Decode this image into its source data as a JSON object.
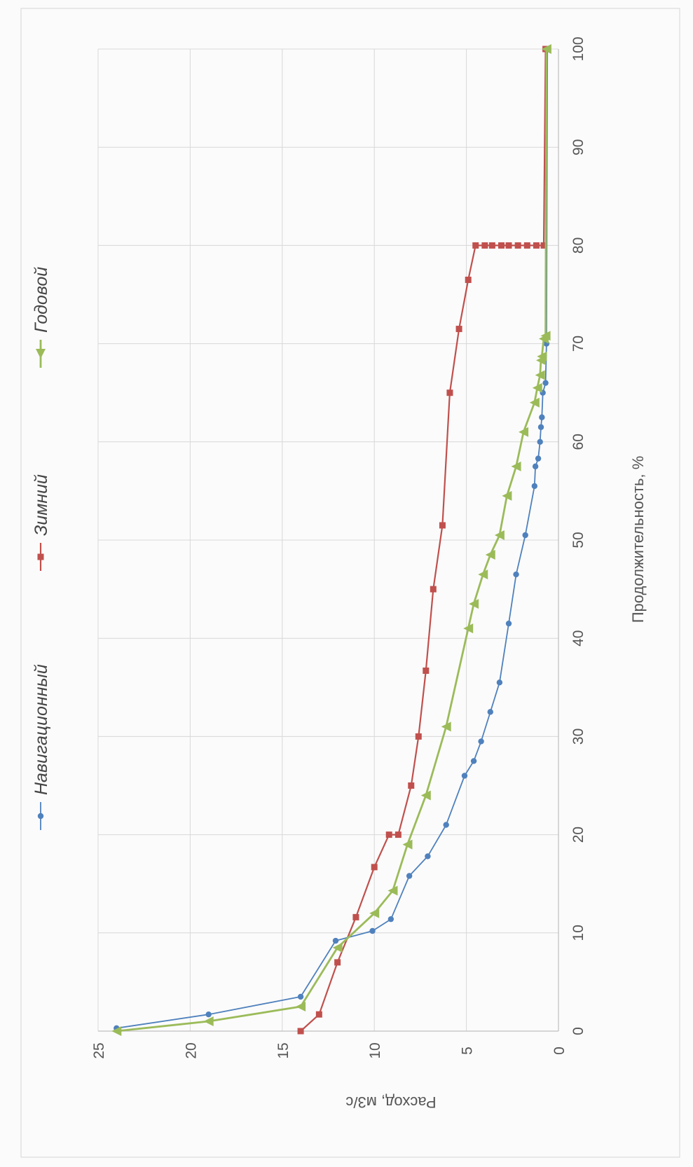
{
  "chart_data": {
    "type": "line",
    "title": "",
    "xlabel": "Продолжительность, %",
    "ylabel": "Расход, м3/с",
    "xlim": [
      0,
      100
    ],
    "ylim": [
      0,
      25
    ],
    "x_ticks": [
      0,
      10,
      20,
      30,
      40,
      50,
      60,
      70,
      80,
      90,
      100
    ],
    "y_ticks": [
      0,
      5,
      10,
      15,
      20,
      25
    ],
    "grid": true,
    "legend_position": "top",
    "series": [
      {
        "name": "Навигационный",
        "color": "#4f81bd",
        "marker": "circle",
        "points": [
          [
            0.3,
            24.0
          ],
          [
            1.7,
            19.0
          ],
          [
            3.5,
            14.0
          ],
          [
            9.2,
            12.1
          ],
          [
            10.2,
            10.1
          ],
          [
            11.4,
            9.1
          ],
          [
            15.8,
            8.1
          ],
          [
            17.8,
            7.1
          ],
          [
            21.0,
            6.1
          ],
          [
            26.0,
            5.1
          ],
          [
            27.5,
            4.6
          ],
          [
            29.5,
            4.2
          ],
          [
            32.5,
            3.7
          ],
          [
            35.5,
            3.2
          ],
          [
            41.5,
            2.7
          ],
          [
            46.5,
            2.3
          ],
          [
            50.5,
            1.8
          ],
          [
            55.5,
            1.3
          ],
          [
            57.5,
            1.25
          ],
          [
            58.3,
            1.1
          ],
          [
            60.0,
            1.0
          ],
          [
            61.5,
            0.95
          ],
          [
            62.5,
            0.9
          ],
          [
            65.0,
            0.85
          ],
          [
            66.0,
            0.7
          ],
          [
            70.0,
            0.65
          ],
          [
            100.0,
            0.6
          ]
        ]
      },
      {
        "name": "Зимний",
        "color": "#c0504d",
        "marker": "square",
        "points": [
          [
            0.0,
            14.0
          ],
          [
            1.7,
            13.0
          ],
          [
            7.0,
            12.0
          ],
          [
            11.6,
            11.0
          ],
          [
            16.7,
            10.0
          ],
          [
            20.0,
            9.2
          ],
          [
            20.0,
            8.7
          ],
          [
            25.0,
            8.0
          ],
          [
            30.0,
            7.6
          ],
          [
            36.7,
            7.2
          ],
          [
            45.0,
            6.8
          ],
          [
            51.5,
            6.3
          ],
          [
            65.0,
            5.9
          ],
          [
            71.5,
            5.4
          ],
          [
            76.5,
            4.9
          ],
          [
            80.0,
            4.5
          ],
          [
            80.0,
            4.0
          ],
          [
            80.0,
            3.6
          ],
          [
            80.0,
            3.1
          ],
          [
            80.0,
            2.7
          ],
          [
            80.0,
            2.2
          ],
          [
            80.0,
            1.7
          ],
          [
            80.0,
            1.2
          ],
          [
            80.0,
            0.8
          ],
          [
            100.0,
            0.7
          ]
        ]
      },
      {
        "name": "Годовой",
        "color": "#9bbb59",
        "marker": "triangle",
        "points": [
          [
            0.0,
            24.0
          ],
          [
            1.0,
            19.0
          ],
          [
            2.5,
            14.0
          ],
          [
            8.5,
            12.0
          ],
          [
            12.0,
            10.0
          ],
          [
            14.3,
            9.0
          ],
          [
            19.0,
            8.2
          ],
          [
            24.0,
            7.2
          ],
          [
            31.0,
            6.1
          ],
          [
            41.0,
            4.9
          ],
          [
            43.5,
            4.6
          ],
          [
            46.5,
            4.1
          ],
          [
            48.5,
            3.7
          ],
          [
            50.5,
            3.2
          ],
          [
            54.5,
            2.8
          ],
          [
            57.5,
            2.3
          ],
          [
            61.0,
            1.9
          ],
          [
            64.0,
            1.3
          ],
          [
            65.5,
            1.15
          ],
          [
            66.8,
            1.0
          ],
          [
            68.3,
            0.95
          ],
          [
            68.7,
            0.9
          ],
          [
            70.5,
            0.8
          ],
          [
            70.8,
            0.7
          ],
          [
            100.0,
            0.65
          ]
        ]
      }
    ]
  }
}
